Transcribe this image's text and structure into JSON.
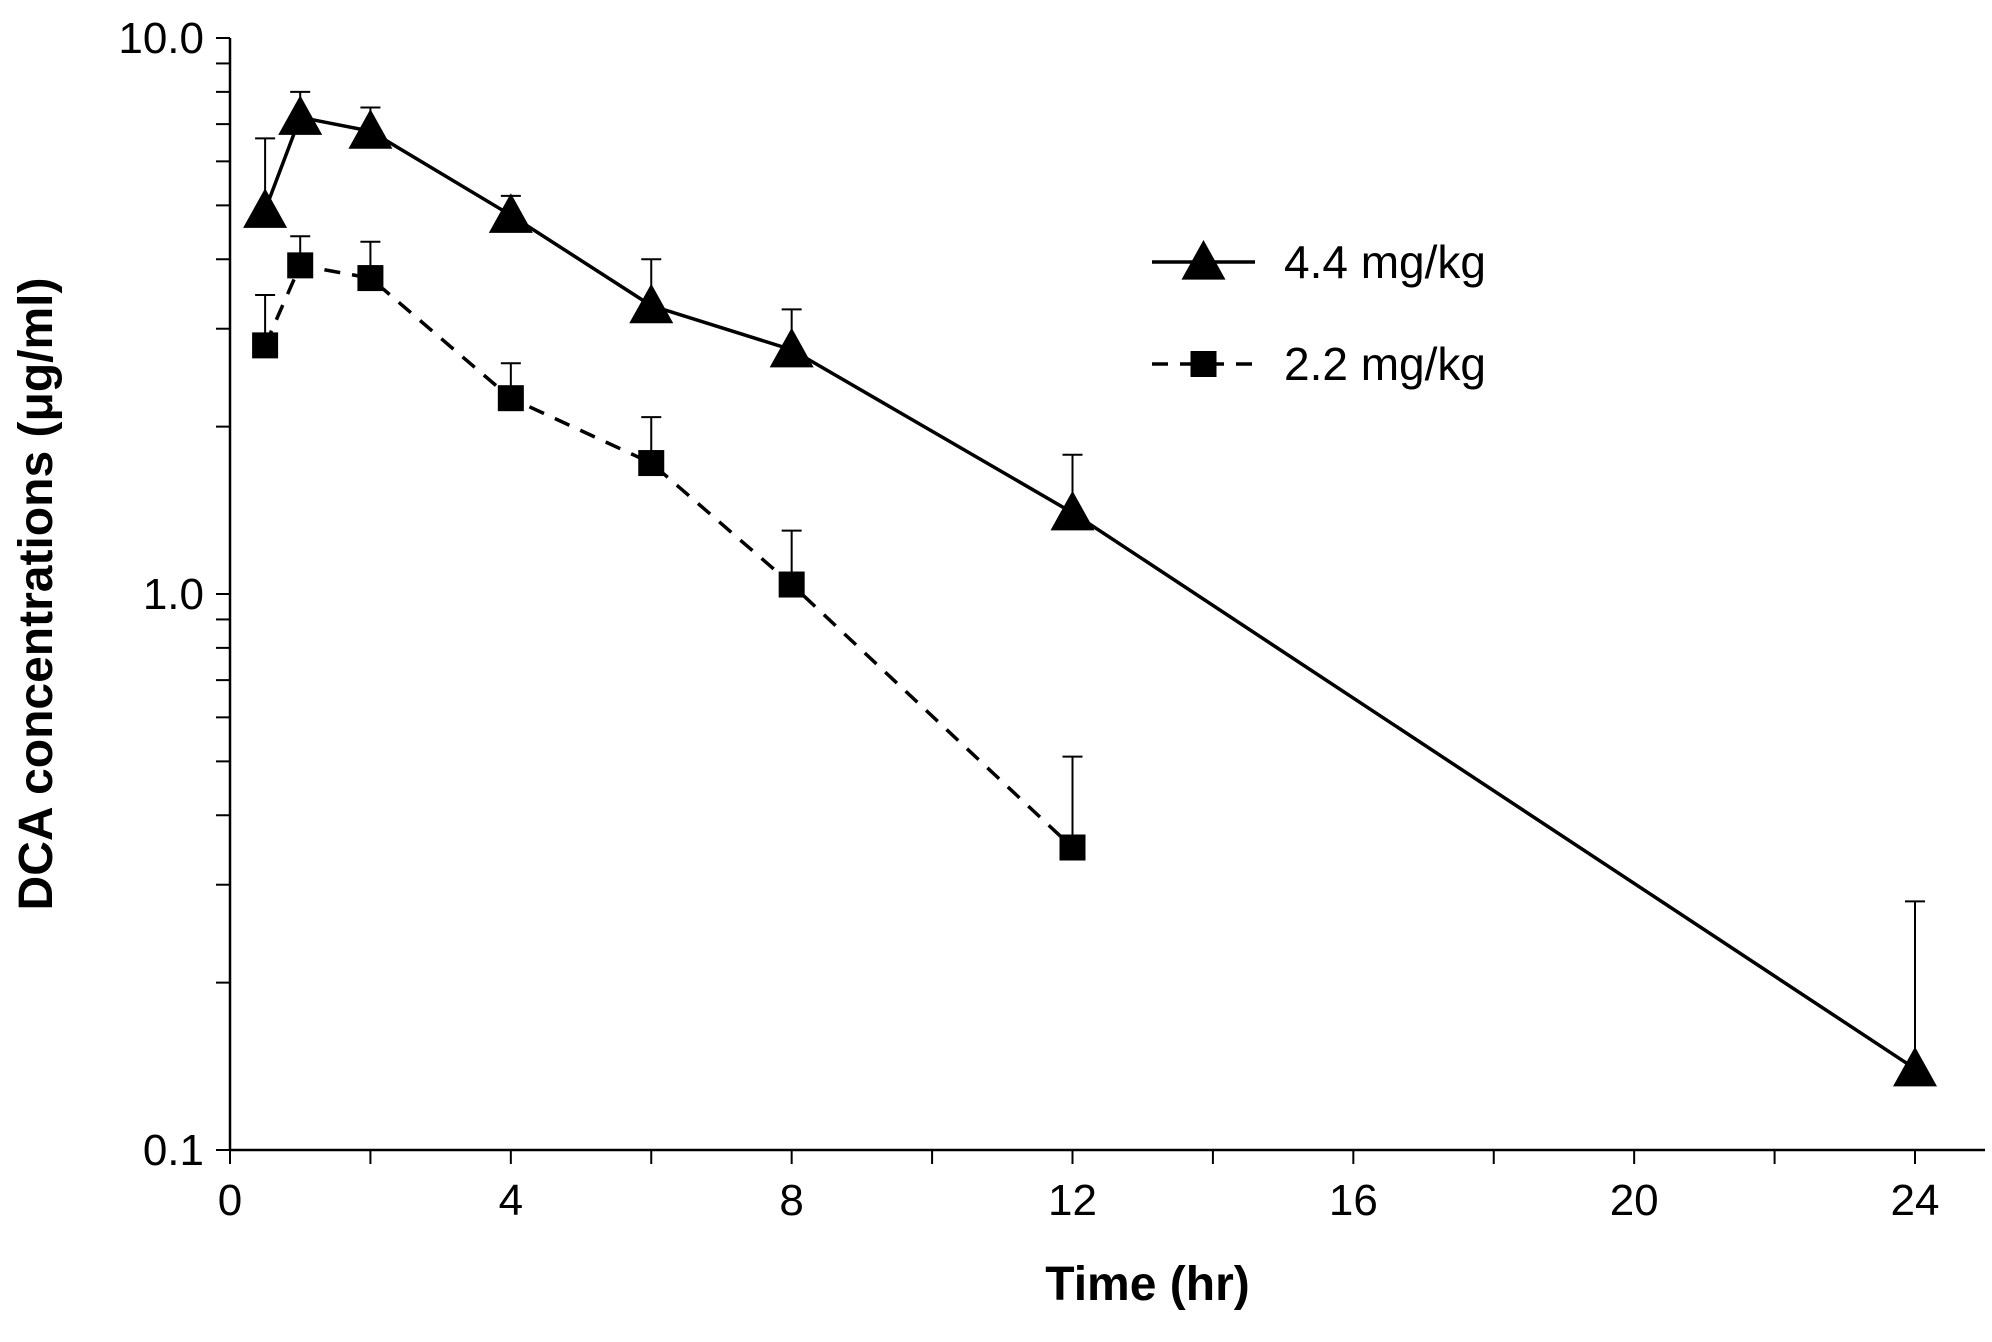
{
  "chart_data": {
    "type": "line",
    "title": "",
    "xlabel": "Time (hr)",
    "ylabel": "DCA concentrations (μg/ml)",
    "xlim": [
      0,
      24
    ],
    "ylim": [
      0.1,
      10.0
    ],
    "yscale": "log",
    "x_ticks": [
      "0",
      "4",
      "8",
      "12",
      "16",
      "20",
      "24"
    ],
    "y_ticks": [
      "0.1",
      "1.0",
      "10.0"
    ],
    "grid": false,
    "legend_position": "upper-right",
    "series": [
      {
        "name": "4.4 mg/kg",
        "marker": "triangle",
        "line_style": "solid",
        "color": "#000000",
        "x": [
          0.5,
          1,
          2,
          4,
          6,
          8,
          12,
          24
        ],
        "y": [
          4.9,
          7.2,
          6.8,
          4.8,
          3.3,
          2.75,
          1.4,
          0.14
        ],
        "error_upper": [
          6.6,
          8.0,
          7.5,
          5.2,
          4.0,
          3.25,
          1.78,
          0.28
        ]
      },
      {
        "name": "2.2 mg/kg",
        "marker": "square",
        "line_style": "dashed",
        "color": "#000000",
        "x": [
          0.5,
          1,
          2,
          4,
          6,
          8,
          12
        ],
        "y": [
          2.8,
          3.9,
          3.7,
          2.25,
          1.72,
          1.04,
          0.35
        ],
        "error_upper": [
          3.45,
          4.4,
          4.3,
          2.6,
          2.08,
          1.3,
          0.51
        ]
      }
    ]
  }
}
